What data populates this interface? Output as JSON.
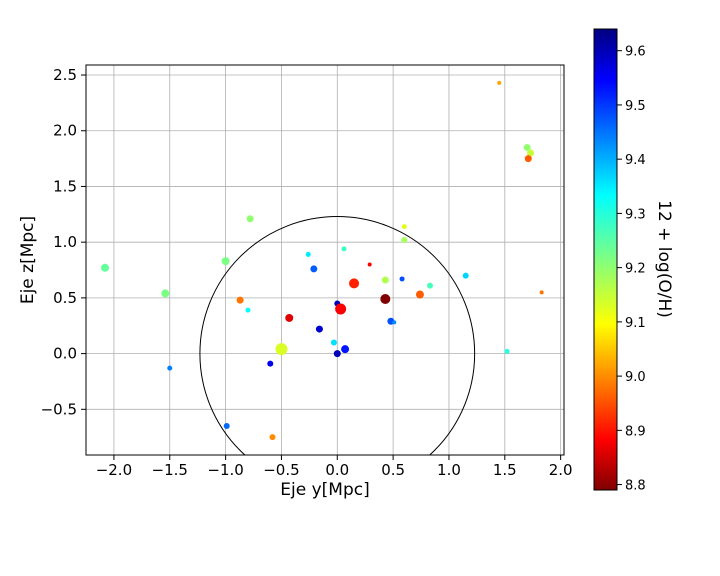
{
  "chart_data": {
    "type": "scatter",
    "title": "",
    "xlabel": "Eje y[Mpc]",
    "ylabel": "Eje z[Mpc]",
    "xlim": [
      -2.25,
      2.03
    ],
    "ylim": [
      -0.91,
      2.59
    ],
    "xticks": [
      -2.0,
      -1.5,
      -1.0,
      -0.5,
      0.0,
      0.5,
      1.0,
      1.5,
      2.0
    ],
    "xtick_labels": [
      "−2.0",
      "−1.5",
      "−1.0",
      "−0.5",
      "0.0",
      "0.5",
      "1.0",
      "1.5",
      "2.0"
    ],
    "yticks": [
      -0.5,
      0.0,
      0.5,
      1.0,
      1.5,
      2.0,
      2.5
    ],
    "ytick_labels": [
      "−0.5",
      "0.0",
      "0.5",
      "1.0",
      "1.5",
      "2.0",
      "2.5"
    ],
    "grid": true,
    "circle": {
      "center": [
        0.0,
        0.0
      ],
      "radius": 1.23
    },
    "colorbar": {
      "label": "12 + log(O/H)",
      "cmap": "jet",
      "vmin": 8.79,
      "vmax": 9.64,
      "ticks": [
        8.8,
        8.9,
        9.0,
        9.1,
        9.2,
        9.3,
        9.4,
        9.5,
        9.6
      ],
      "tick_labels": [
        "8.8",
        "8.9",
        "9.0",
        "9.1",
        "9.2",
        "9.3",
        "9.4",
        "9.5",
        "9.6"
      ]
    },
    "points": [
      {
        "x": 1.45,
        "y": 2.43,
        "c": 9.02,
        "s": 2
      },
      {
        "x": 1.7,
        "y": 1.85,
        "c": 9.2,
        "s": 3.5
      },
      {
        "x": 1.73,
        "y": 1.8,
        "c": 9.15,
        "s": 3.5
      },
      {
        "x": 1.71,
        "y": 1.75,
        "c": 8.96,
        "s": 3.5
      },
      {
        "x": -0.78,
        "y": 1.21,
        "c": 9.2,
        "s": 3.5
      },
      {
        "x": 0.6,
        "y": 1.14,
        "c": 9.12,
        "s": 2.5
      },
      {
        "x": 0.06,
        "y": 0.94,
        "c": 9.28,
        "s": 2.5
      },
      {
        "x": 0.6,
        "y": 1.02,
        "c": 9.18,
        "s": 3
      },
      {
        "x": -0.26,
        "y": 0.89,
        "c": 9.35,
        "s": 2.5
      },
      {
        "x": -2.08,
        "y": 0.77,
        "c": 9.24,
        "s": 4
      },
      {
        "x": -1.0,
        "y": 0.83,
        "c": 9.22,
        "s": 4
      },
      {
        "x": 0.29,
        "y": 0.8,
        "c": 8.88,
        "s": 2
      },
      {
        "x": -0.21,
        "y": 0.76,
        "c": 9.47,
        "s": 3.5
      },
      {
        "x": 1.15,
        "y": 0.7,
        "c": 9.37,
        "s": 3
      },
      {
        "x": 0.58,
        "y": 0.67,
        "c": 9.48,
        "s": 2.5
      },
      {
        "x": 0.43,
        "y": 0.66,
        "c": 9.17,
        "s": 3.5
      },
      {
        "x": 0.15,
        "y": 0.63,
        "c": 8.91,
        "s": 5
      },
      {
        "x": 0.83,
        "y": 0.61,
        "c": 9.27,
        "s": 3
      },
      {
        "x": 1.83,
        "y": 0.55,
        "c": 8.98,
        "s": 2
      },
      {
        "x": -1.54,
        "y": 0.54,
        "c": 9.22,
        "s": 4
      },
      {
        "x": 0.74,
        "y": 0.53,
        "c": 8.96,
        "s": 4
      },
      {
        "x": 0.43,
        "y": 0.49,
        "c": 8.79,
        "s": 5
      },
      {
        "x": -0.87,
        "y": 0.48,
        "c": 8.98,
        "s": 3.5
      },
      {
        "x": 0.0,
        "y": 0.45,
        "c": 9.6,
        "s": 3
      },
      {
        "x": 0.03,
        "y": 0.4,
        "c": 8.88,
        "s": 5.5
      },
      {
        "x": -0.8,
        "y": 0.39,
        "c": 9.33,
        "s": 2.5
      },
      {
        "x": -0.43,
        "y": 0.32,
        "c": 8.86,
        "s": 4
      },
      {
        "x": 0.48,
        "y": 0.29,
        "c": 9.48,
        "s": 3.5
      },
      {
        "x": 0.51,
        "y": 0.28,
        "c": 9.43,
        "s": 2
      },
      {
        "x": -0.16,
        "y": 0.22,
        "c": 9.58,
        "s": 3.5
      },
      {
        "x": -0.03,
        "y": 0.1,
        "c": 9.36,
        "s": 3
      },
      {
        "x": 0.07,
        "y": 0.04,
        "c": 9.53,
        "s": 4
      },
      {
        "x": -0.5,
        "y": 0.04,
        "c": 9.13,
        "s": 6
      },
      {
        "x": 0.0,
        "y": 0.0,
        "c": 9.6,
        "s": 3.5
      },
      {
        "x": 1.52,
        "y": 0.02,
        "c": 9.3,
        "s": 2.5
      },
      {
        "x": -0.6,
        "y": -0.09,
        "c": 9.56,
        "s": 3
      },
      {
        "x": -1.5,
        "y": -0.13,
        "c": 9.44,
        "s": 2.5
      },
      {
        "x": -0.99,
        "y": -0.65,
        "c": 9.46,
        "s": 3
      },
      {
        "x": -0.58,
        "y": -0.75,
        "c": 9.0,
        "s": 3
      }
    ]
  }
}
